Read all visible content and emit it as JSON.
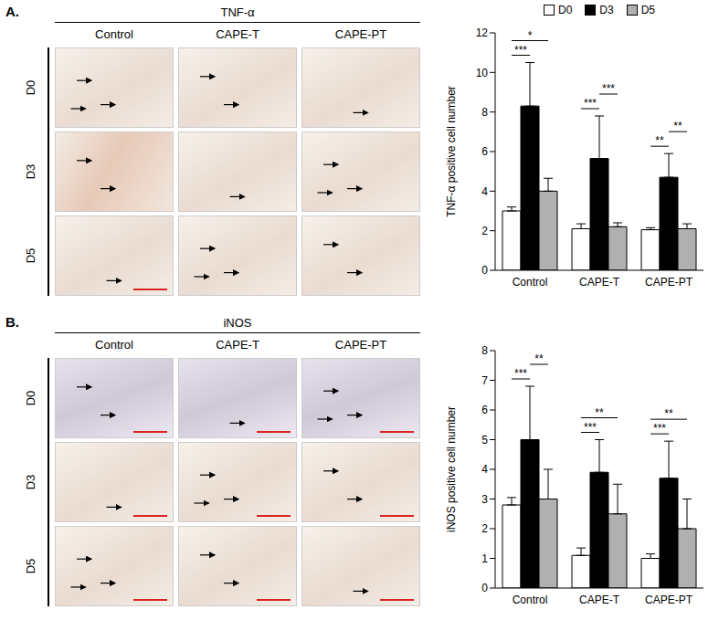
{
  "panels": [
    {
      "letter": "A.",
      "image_title": "TNF-α",
      "image_columns": [
        "Control",
        "CAPE-T",
        "CAPE-PT"
      ],
      "image_rows": [
        "D0",
        "D3",
        "D5"
      ]
    },
    {
      "letter": "B.",
      "image_title": "iNOS",
      "image_columns": [
        "Control",
        "CAPE-T",
        "CAPE-PT"
      ],
      "image_rows": [
        "D0",
        "D3",
        "D5"
      ]
    }
  ],
  "chart_data": [
    {
      "type": "bar",
      "categories": [
        "Control",
        "CAPE-T",
        "CAPE-PT"
      ],
      "ylabel": "TNF-α positive cell number",
      "ylim": [
        0,
        12
      ],
      "yticks": [
        0,
        2,
        4,
        6,
        8,
        10,
        12
      ],
      "legend": "top",
      "series": [
        {
          "name": "D0",
          "color": "#ffffff",
          "values": [
            3.0,
            2.1,
            2.05
          ],
          "errors": [
            0.2,
            0.25,
            0.1
          ]
        },
        {
          "name": "D3",
          "color": "#000000",
          "values": [
            8.3,
            5.65,
            4.7
          ],
          "errors": [
            2.2,
            2.15,
            1.2
          ]
        },
        {
          "name": "D5",
          "color": "#b0b0b0",
          "values": [
            4.0,
            2.2,
            2.1
          ],
          "errors": [
            0.65,
            0.2,
            0.25
          ]
        }
      ],
      "significance": [
        {
          "category": "Control",
          "from": "D0",
          "to": "D3",
          "label": "***"
        },
        {
          "category": "Control",
          "from": "D0",
          "to": "D5",
          "label": "*"
        },
        {
          "category": "CAPE-T",
          "from": "D0",
          "to": "D3",
          "label": "***"
        },
        {
          "category": "CAPE-T",
          "from": "D3",
          "to": "D5",
          "label": "***"
        },
        {
          "category": "CAPE-PT",
          "from": "D0",
          "to": "D3",
          "label": "**"
        },
        {
          "category": "CAPE-PT",
          "from": "D3",
          "to": "D5",
          "label": "**"
        }
      ]
    },
    {
      "type": "bar",
      "categories": [
        "Control",
        "CAPE-T",
        "CAPE-PT"
      ],
      "ylabel": "iNOS positive cell number",
      "ylim": [
        0,
        8
      ],
      "yticks": [
        0,
        1,
        2,
        3,
        4,
        5,
        6,
        7,
        8
      ],
      "series": [
        {
          "name": "D0",
          "color": "#ffffff",
          "values": [
            2.8,
            1.1,
            1.0
          ],
          "errors": [
            0.25,
            0.25,
            0.15
          ]
        },
        {
          "name": "D3",
          "color": "#000000",
          "values": [
            5.0,
            3.9,
            3.7
          ],
          "errors": [
            1.8,
            1.1,
            1.25
          ]
        },
        {
          "name": "D5",
          "color": "#b0b0b0",
          "values": [
            3.0,
            2.5,
            2.0
          ],
          "errors": [
            1.0,
            1.0,
            1.0
          ]
        }
      ],
      "significance": [
        {
          "category": "Control",
          "from": "D0",
          "to": "D3",
          "label": "***"
        },
        {
          "category": "Control",
          "from": "D3",
          "to": "D5",
          "label": "**"
        },
        {
          "category": "CAPE-T",
          "from": "D0",
          "to": "D3",
          "label": "***"
        },
        {
          "category": "CAPE-T",
          "from": "D0",
          "to": "D5",
          "label": "**"
        },
        {
          "category": "CAPE-PT",
          "from": "D0",
          "to": "D3",
          "label": "***"
        },
        {
          "category": "CAPE-PT",
          "from": "D0",
          "to": "D5",
          "label": "**"
        }
      ]
    }
  ]
}
